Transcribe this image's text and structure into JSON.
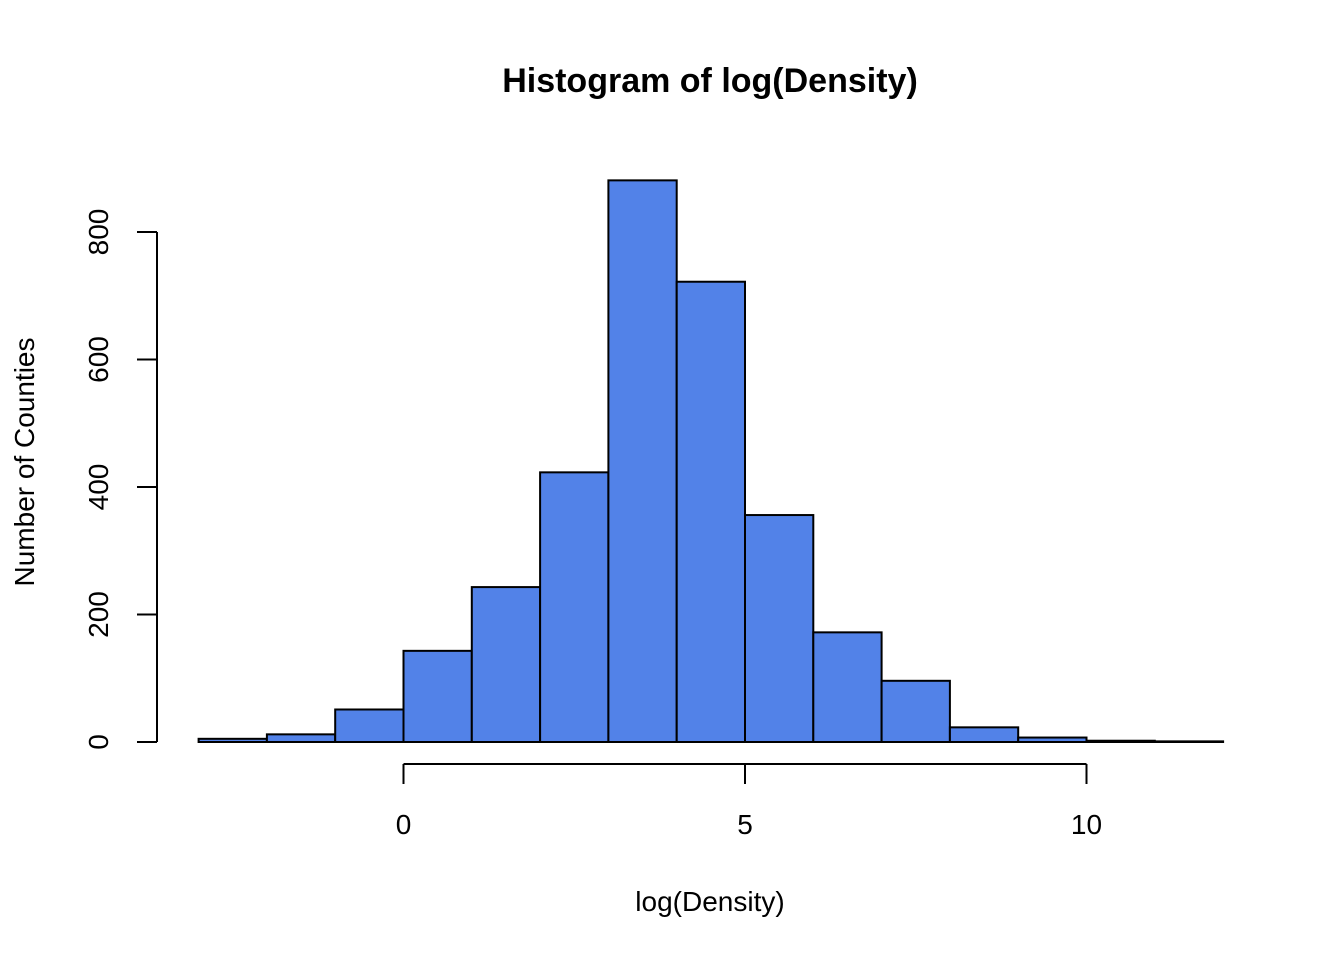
{
  "chart_data": {
    "type": "bar",
    "title": "Histogram of log(Density)",
    "xlabel": "log(Density)",
    "ylabel": "Number of Counties",
    "bin_edges": [
      -3,
      -2,
      -1,
      0,
      1,
      2,
      3,
      4,
      5,
      6,
      7,
      8,
      9,
      10,
      11,
      12
    ],
    "values": [
      5,
      12,
      51,
      143,
      243,
      423,
      881,
      722,
      356,
      172,
      96,
      23,
      7,
      2,
      1
    ],
    "x_ticks": [
      0,
      5,
      10
    ],
    "x_tick_labels": [
      "0",
      "5",
      "10"
    ],
    "y_ticks": [
      0,
      200,
      400,
      600,
      800
    ],
    "y_tick_labels": [
      "0",
      "200",
      "400",
      "600",
      "800"
    ],
    "xlim": [
      -3,
      12
    ],
    "ylim": [
      0,
      881
    ],
    "grid": false,
    "legend": "none",
    "bar_color": "#5282E8",
    "bar_edge_color": "#000000"
  }
}
